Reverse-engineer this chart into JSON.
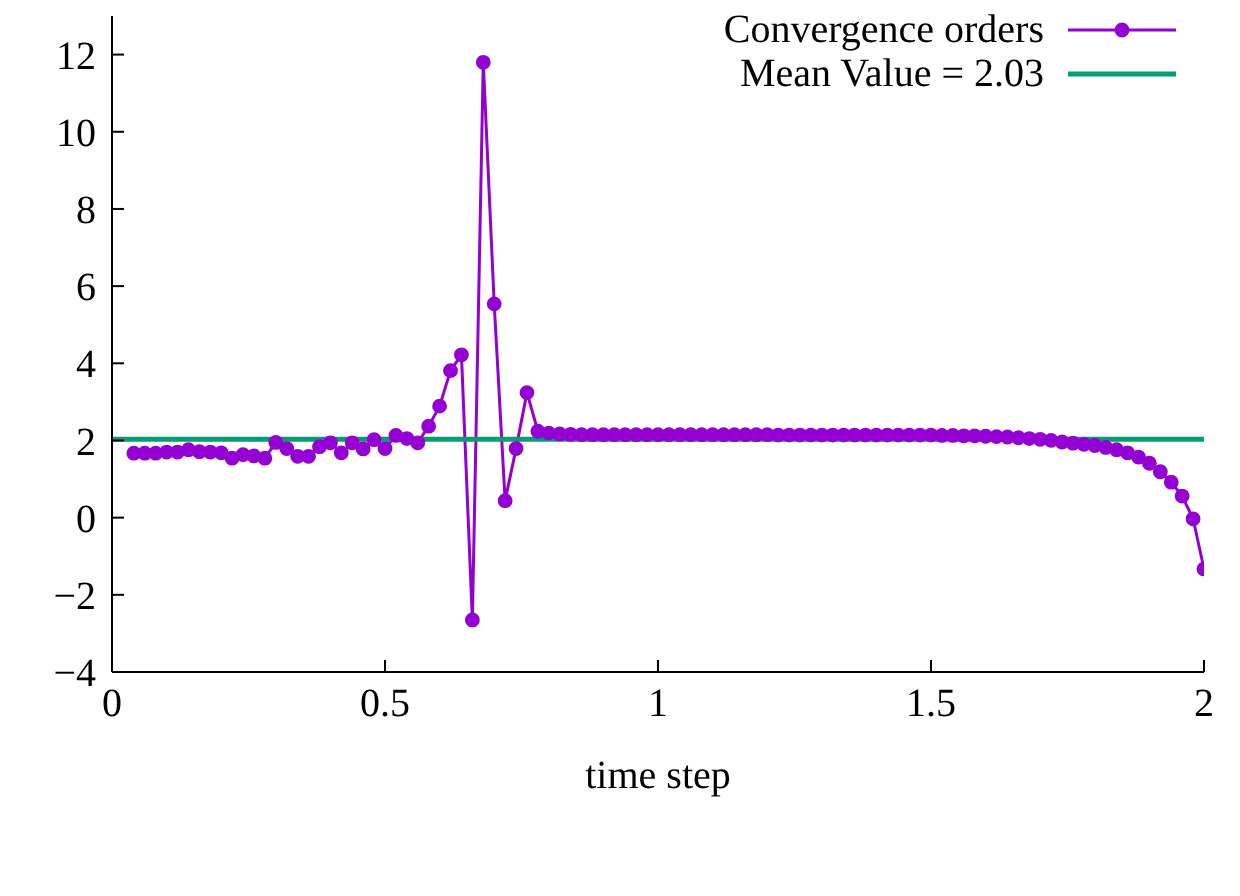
{
  "chart_data": {
    "type": "line",
    "xlabel": "time step",
    "xlim": [
      0,
      2
    ],
    "xticks": [
      0,
      0.5,
      1,
      1.5,
      2
    ],
    "ylim": [
      -4,
      13
    ],
    "yticks": [
      -4,
      -2,
      0,
      2,
      4,
      6,
      8,
      10,
      12
    ],
    "legend": "top right",
    "series": [
      {
        "name": "Convergence orders",
        "color": "#9400d3",
        "marker": "circle",
        "x": [
          0.04,
          0.06,
          0.08,
          0.1,
          0.12,
          0.14,
          0.16,
          0.18,
          0.2,
          0.22,
          0.24,
          0.26,
          0.28,
          0.3,
          0.32,
          0.34,
          0.36,
          0.38,
          0.4,
          0.42,
          0.44,
          0.46,
          0.48,
          0.5,
          0.52,
          0.54,
          0.56,
          0.58,
          0.6,
          0.62,
          0.64,
          0.66,
          0.68,
          0.7,
          0.72,
          0.74,
          0.76,
          0.78,
          0.8,
          0.82,
          0.84,
          0.86,
          0.88,
          0.9,
          0.92,
          0.94,
          0.96,
          0.98,
          1.0,
          1.02,
          1.04,
          1.06,
          1.08,
          1.1,
          1.12,
          1.14,
          1.16,
          1.18,
          1.2,
          1.22,
          1.24,
          1.26,
          1.28,
          1.3,
          1.32,
          1.34,
          1.36,
          1.38,
          1.4,
          1.42,
          1.44,
          1.46,
          1.48,
          1.5,
          1.52,
          1.54,
          1.56,
          1.58,
          1.6,
          1.62,
          1.64,
          1.66,
          1.68,
          1.7,
          1.72,
          1.74,
          1.76,
          1.78,
          1.8,
          1.82,
          1.84,
          1.86,
          1.88,
          1.9,
          1.92,
          1.94,
          1.96,
          1.98,
          2.0
        ],
        "values": [
          1.67,
          1.67,
          1.67,
          1.7,
          1.7,
          1.76,
          1.71,
          1.7,
          1.68,
          1.54,
          1.63,
          1.6,
          1.54,
          1.95,
          1.79,
          1.59,
          1.59,
          1.84,
          1.94,
          1.68,
          1.94,
          1.78,
          2.02,
          1.79,
          2.13,
          2.05,
          1.94,
          2.37,
          2.89,
          3.81,
          4.22,
          -2.65,
          11.8,
          5.54,
          0.44,
          1.79,
          3.24,
          2.24,
          2.19,
          2.17,
          2.16,
          2.15,
          2.15,
          2.15,
          2.15,
          2.15,
          2.15,
          2.15,
          2.15,
          2.15,
          2.15,
          2.15,
          2.15,
          2.15,
          2.15,
          2.15,
          2.15,
          2.15,
          2.15,
          2.14,
          2.14,
          2.14,
          2.14,
          2.14,
          2.14,
          2.14,
          2.14,
          2.14,
          2.14,
          2.14,
          2.14,
          2.14,
          2.14,
          2.14,
          2.13,
          2.13,
          2.12,
          2.12,
          2.11,
          2.1,
          2.09,
          2.07,
          2.05,
          2.03,
          2.0,
          1.96,
          1.93,
          1.9,
          1.87,
          1.82,
          1.76,
          1.68,
          1.57,
          1.41,
          1.19,
          0.92,
          0.56,
          -0.03,
          -1.33
        ]
      },
      {
        "name": "Mean Value = 2.03",
        "color": "#009e73",
        "marker": "none",
        "x": [
          0,
          2
        ],
        "values": [
          2.03,
          2.03
        ]
      }
    ]
  }
}
